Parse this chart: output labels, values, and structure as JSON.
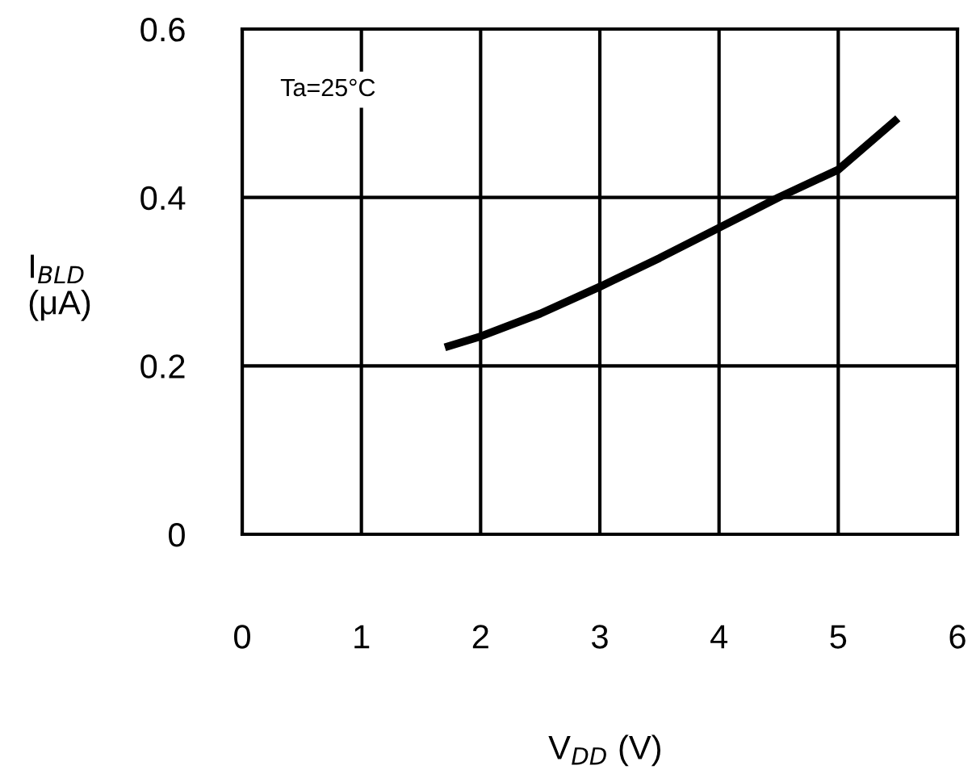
{
  "chart_data": {
    "type": "line",
    "xlabel": "V$_{DD}$ (V)",
    "ylabel": "I$_{BLD}$\n(μA)",
    "annotations": [
      "Ta=25°C"
    ],
    "x": [
      1.7,
      2.0,
      2.5,
      3.0,
      3.5,
      4.0,
      4.5,
      5.0,
      5.5
    ],
    "series": [
      {
        "color": "#000000",
        "values": [
          0.222,
          0.235,
          0.262,
          0.294,
          0.328,
          0.364,
          0.4,
          0.433,
          0.494
        ]
      }
    ],
    "xlim": [
      0,
      6
    ],
    "xticks": [
      0,
      1,
      2,
      3,
      4,
      5,
      6
    ],
    "ylim": [
      0,
      0.6
    ],
    "yticks": [
      0,
      {
        "value": 0.2,
        "label": "0.2"
      },
      {
        "value": 0.4,
        "label": "0.4"
      },
      {
        "value": 0.6,
        "label": "0.6"
      }
    ],
    "grid": true,
    "marker": "none",
    "line_style": "solid",
    "legend": false
  }
}
